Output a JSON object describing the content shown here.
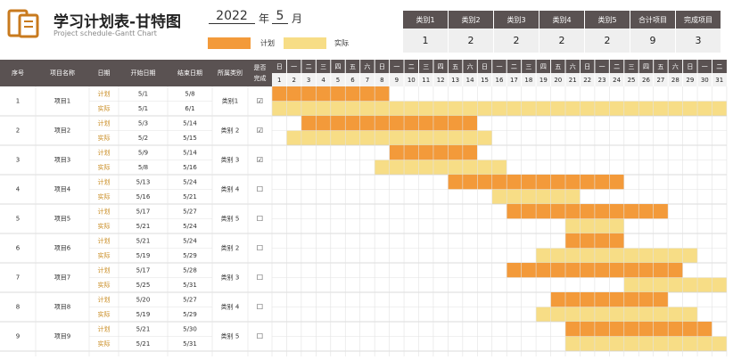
{
  "header": {
    "title": "学习计划表-甘特图",
    "subtitle": "Project schedule-Gantt Chart",
    "year": "2022",
    "year_unit": "年",
    "month": "5",
    "month_unit": "月",
    "legend_plan": "计划",
    "legend_actual": "实际"
  },
  "summary": {
    "headers": [
      "类别1",
      "类别2",
      "类别3",
      "类别4",
      "类别5",
      "合计项目",
      "完成项目"
    ],
    "values": [
      "1",
      "2",
      "2",
      "2",
      "2",
      "9",
      "3"
    ]
  },
  "columns": [
    "序号",
    "项目名称",
    "日期",
    "开始日期",
    "结束日期",
    "所属类别",
    "是否完成"
  ],
  "weekdays": [
    "日",
    "一",
    "二",
    "三",
    "四",
    "五",
    "六",
    "日",
    "一",
    "二",
    "三",
    "四",
    "五",
    "六",
    "日",
    "一",
    "二",
    "三",
    "四",
    "五",
    "六",
    "日",
    "一",
    "二",
    "三",
    "四",
    "五",
    "六",
    "日",
    "一",
    "二"
  ],
  "days": [
    "1",
    "2",
    "3",
    "4",
    "5",
    "6",
    "7",
    "8",
    "9",
    "10",
    "11",
    "12",
    "13",
    "14",
    "15",
    "16",
    "17",
    "18",
    "19",
    "20",
    "21",
    "22",
    "23",
    "24",
    "25",
    "26",
    "27",
    "28",
    "29",
    "30",
    "31"
  ],
  "colors": {
    "plan": "#f39a3a",
    "actual": "#f7dd86",
    "header_bg": "#5a5252"
  },
  "plan_label": "计划",
  "actual_label": "实际",
  "projects": [
    {
      "no": "1",
      "name": "项目1",
      "plan_start": "5/1",
      "plan_end": "5/8",
      "act_start": "5/1",
      "act_end": "6/1",
      "category": "类别1",
      "done": "☑"
    },
    {
      "no": "2",
      "name": "项目2",
      "plan_start": "5/3",
      "plan_end": "5/14",
      "act_start": "5/2",
      "act_end": "5/15",
      "category": "类别 2",
      "done": "☑"
    },
    {
      "no": "3",
      "name": "项目3",
      "plan_start": "5/9",
      "plan_end": "5/14",
      "act_start": "5/8",
      "act_end": "5/16",
      "category": "类别 3",
      "done": "☑"
    },
    {
      "no": "4",
      "name": "项目4",
      "plan_start": "5/13",
      "plan_end": "5/24",
      "act_start": "5/16",
      "act_end": "5/21",
      "category": "类别 4",
      "done": "☐"
    },
    {
      "no": "5",
      "name": "项目5",
      "plan_start": "5/17",
      "plan_end": "5/27",
      "act_start": "5/21",
      "act_end": "5/24",
      "category": "类别 5",
      "done": "☐"
    },
    {
      "no": "6",
      "name": "项目6",
      "plan_start": "5/21",
      "plan_end": "5/24",
      "act_start": "5/19",
      "act_end": "5/29",
      "category": "类别 2",
      "done": "☐"
    },
    {
      "no": "7",
      "name": "项目7",
      "plan_start": "5/17",
      "plan_end": "5/28",
      "act_start": "5/25",
      "act_end": "5/31",
      "category": "类别 3",
      "done": "☐"
    },
    {
      "no": "8",
      "name": "项目8",
      "plan_start": "5/20",
      "plan_end": "5/27",
      "act_start": "5/19",
      "act_end": "5/29",
      "category": "类别 4",
      "done": "☐"
    },
    {
      "no": "9",
      "name": "项目9",
      "plan_start": "5/21",
      "plan_end": "5/30",
      "act_start": "5/21",
      "act_end": "5/31",
      "category": "类别 5",
      "done": "☐"
    }
  ]
}
